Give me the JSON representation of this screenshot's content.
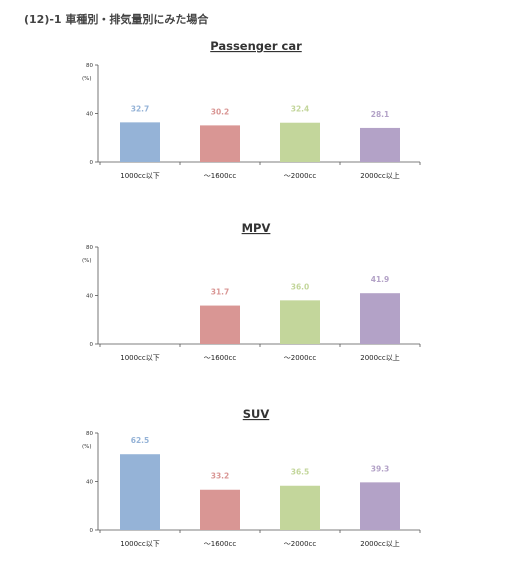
{
  "heading": "(12)-1 車種別・排気量別にみた場合",
  "colors": {
    "1000cc以下": "#95b3d7",
    "〜1600cc": "#d99694",
    "〜2000cc": "#c3d69b",
    "2000cc以上": "#b3a2c7"
  },
  "chart_data": [
    {
      "type": "bar",
      "title": "Passenger car",
      "unit": "(%)",
      "categories": [
        "1000cc以下",
        "〜1600cc",
        "〜2000cc",
        "2000cc以上"
      ],
      "values": [
        32.7,
        30.2,
        32.4,
        28.1
      ],
      "value_labels": [
        "32.7",
        "30.2",
        "32.4",
        "28.1"
      ],
      "yticks": [
        "0",
        "40",
        "80"
      ],
      "ylim": [
        0,
        80
      ],
      "grid": false
    },
    {
      "type": "bar",
      "title": "MPV",
      "unit": "(%)",
      "categories": [
        "1000cc以下",
        "〜1600cc",
        "〜2000cc",
        "2000cc以上"
      ],
      "values": [
        null,
        31.7,
        36.0,
        41.9
      ],
      "value_labels": [
        "",
        "31.7",
        "36.0",
        "41.9"
      ],
      "yticks": [
        "0",
        "40",
        "80"
      ],
      "ylim": [
        0,
        80
      ],
      "grid": false
    },
    {
      "type": "bar",
      "title": "SUV",
      "unit": "(%)",
      "categories": [
        "1000cc以下",
        "〜1600cc",
        "〜2000cc",
        "2000cc以上"
      ],
      "values": [
        62.5,
        33.2,
        36.5,
        39.3
      ],
      "value_labels": [
        "62.5",
        "33.2",
        "36.5",
        "39.3"
      ],
      "yticks": [
        "0",
        "40",
        "80"
      ],
      "ylim": [
        0,
        80
      ],
      "grid": false
    }
  ]
}
